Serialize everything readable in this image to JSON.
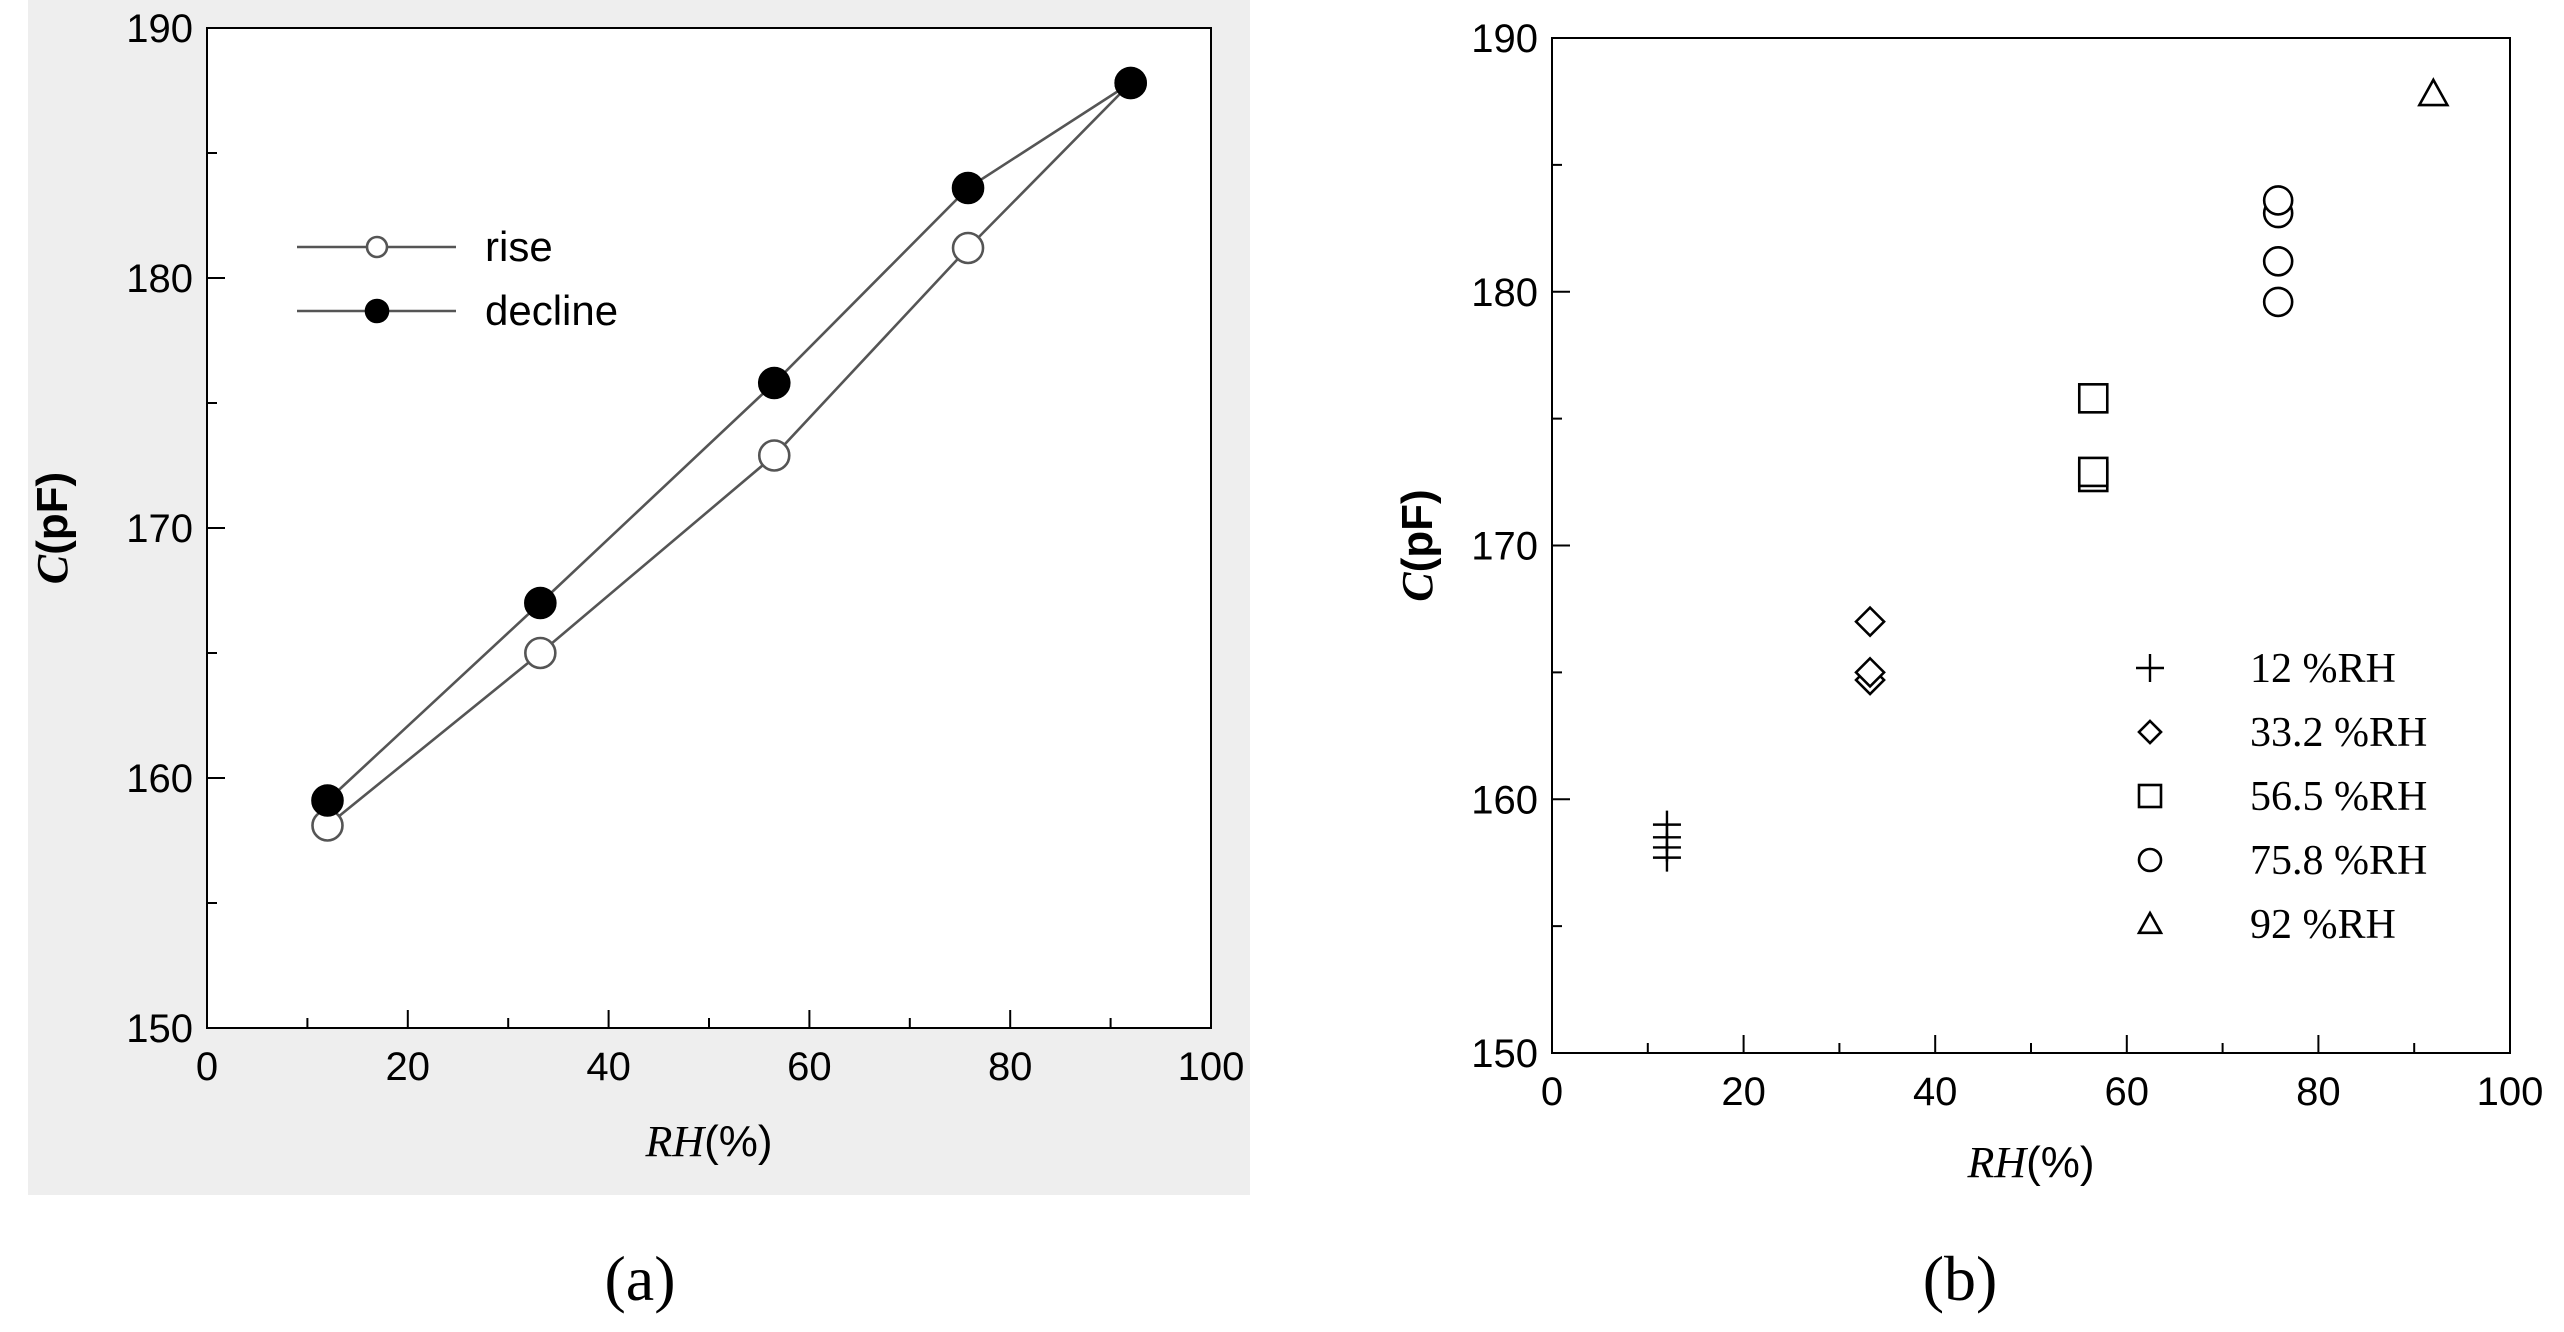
{
  "chart_data": [
    {
      "type": "line",
      "panel": "(a)",
      "xlabel": {
        "var": "RH",
        "unit": "(%)"
      },
      "ylabel": {
        "var": "C",
        "unit": "(pF)"
      },
      "xlim": [
        0,
        100
      ],
      "ylim": [
        150,
        190
      ],
      "xticks": [
        0,
        20,
        40,
        60,
        80,
        100
      ],
      "yticks": [
        150,
        160,
        170,
        180,
        190
      ],
      "legend_position": "top-left",
      "series": [
        {
          "name": "rise",
          "marker": "open-circle",
          "x": [
            12,
            33.2,
            56.5,
            75.8,
            92
          ],
          "y": [
            158.1,
            165.0,
            172.9,
            181.2,
            187.8
          ]
        },
        {
          "name": "decline",
          "marker": "filled-circle",
          "x": [
            12,
            33.2,
            56.5,
            75.8,
            92
          ],
          "y": [
            159.1,
            167.0,
            175.8,
            183.6,
            187.8
          ]
        }
      ]
    },
    {
      "type": "scatter",
      "panel": "(b)",
      "xlabel": {
        "var": "RH",
        "unit": "(%)"
      },
      "ylabel": {
        "var": "C",
        "unit": "(pF)"
      },
      "xlim": [
        0,
        100
      ],
      "ylim": [
        150,
        190
      ],
      "xticks": [
        0,
        20,
        40,
        60,
        80,
        100
      ],
      "yticks": [
        150,
        160,
        170,
        180,
        190
      ],
      "legend_position": "bottom-right",
      "series": [
        {
          "name": "12 %RH",
          "marker": "plus",
          "x": [
            12,
            12,
            12,
            12
          ],
          "y": [
            157.7,
            158.1,
            158.5,
            159.0
          ]
        },
        {
          "name": "33.2 %RH",
          "marker": "diamond",
          "x": [
            33.2,
            33.2,
            33.2
          ],
          "y": [
            164.7,
            165.0,
            167.0
          ]
        },
        {
          "name": "56.5 %RH",
          "marker": "square",
          "x": [
            56.5,
            56.5,
            56.5
          ],
          "y": [
            172.7,
            172.9,
            175.8
          ]
        },
        {
          "name": "75.8 %RH",
          "marker": "circle",
          "x": [
            75.8,
            75.8,
            75.8,
            75.8
          ],
          "y": [
            179.6,
            181.2,
            183.1,
            183.6
          ]
        },
        {
          "name": "92 %RH",
          "marker": "triangle",
          "x": [
            92
          ],
          "y": [
            187.8
          ]
        }
      ]
    }
  ]
}
